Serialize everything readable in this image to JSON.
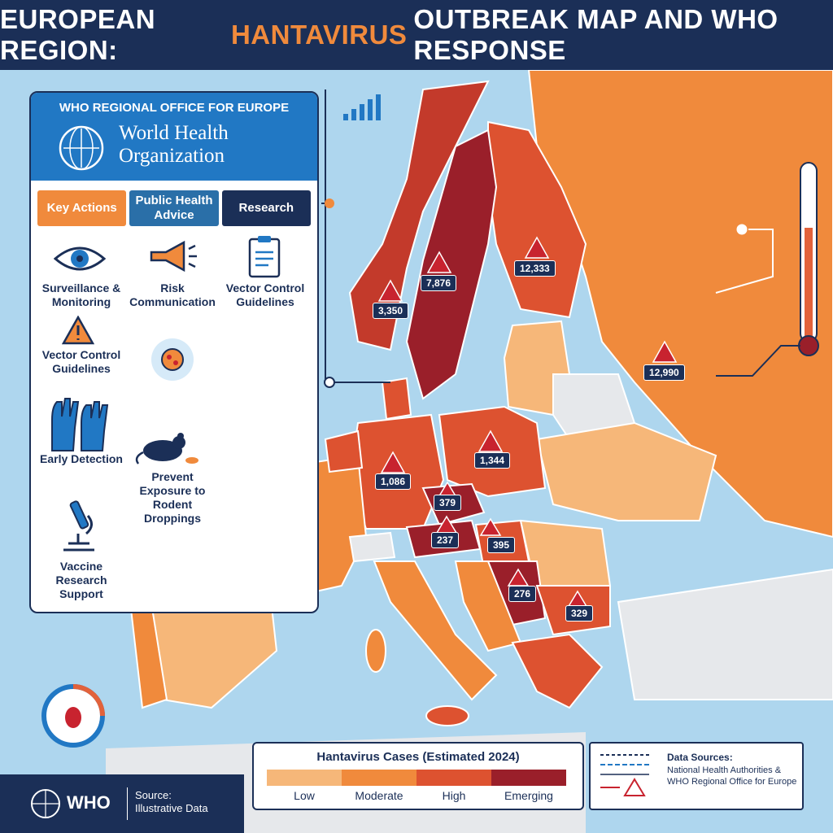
{
  "title": {
    "prefix": "EUROPEAN REGION:",
    "highlight": "HANTAVIRUS",
    "suffix": "OUTBREAK MAP AND WHO RESPONSE"
  },
  "panel": {
    "office": "WHO REGIONAL OFFICE FOR EUROPE",
    "org_name": "World Health Organization",
    "tabs": [
      {
        "label": "Key Actions",
        "color": "#f08a3c"
      },
      {
        "label": "Public Health Advice",
        "color": "#2a6fa8"
      },
      {
        "label": "Research",
        "color": "#1b2f57"
      }
    ],
    "items": [
      {
        "label": "Surveillance & Monitoring",
        "icon": "eye-icon"
      },
      {
        "label": "Risk Communication",
        "icon": "megaphone-icon"
      },
      {
        "label": "Vector Control Guidelines",
        "icon": "clipboard-icon"
      },
      {
        "label": "Vector Control Guidelines",
        "icon": "warning-icon"
      },
      {
        "label": "Early Detection",
        "icon": "gloves-icon"
      },
      {
        "label": "Prevent Exposure to Rodent Droppings",
        "icon": "rodent-icon"
      },
      {
        "label": "Vaccine Research Support",
        "icon": "microscope-icon"
      }
    ]
  },
  "cases": [
    {
      "label": "3,350",
      "region": "Norway"
    },
    {
      "label": "7,876",
      "region": "Sweden"
    },
    {
      "label": "12,333",
      "region": "Finland"
    },
    {
      "label": "12,990",
      "region": "Russia"
    },
    {
      "label": "1,086",
      "region": "Germany"
    },
    {
      "label": "1,344",
      "region": "Poland"
    },
    {
      "label": "379",
      "region": "Czechia"
    },
    {
      "label": "237",
      "region": "Austria"
    },
    {
      "label": "395",
      "region": "Hungary"
    },
    {
      "label": "276",
      "region": "Serbia"
    },
    {
      "label": "329",
      "region": "Bulgaria"
    }
  ],
  "legend": {
    "title": "Hantavirus Cases (Estimated 2024)",
    "levels": [
      {
        "label": "Low",
        "color": "#f6b779"
      },
      {
        "label": "Moderate",
        "color": "#f08a3c"
      },
      {
        "label": "High",
        "color": "#dd5230"
      },
      {
        "label": "Emerging",
        "color": "#9a1f2a"
      }
    ]
  },
  "sources": {
    "title": "Data Sources:",
    "text": "National Health Authorities & WHO Regional Office for Europe"
  },
  "footer": {
    "logo": "WHO",
    "source_label": "Source:",
    "source_value": "Illustrative Data"
  },
  "colors": {
    "navy": "#1b2f57",
    "sea": "#aed6ee",
    "neutral_land": "#e6e8eb"
  }
}
